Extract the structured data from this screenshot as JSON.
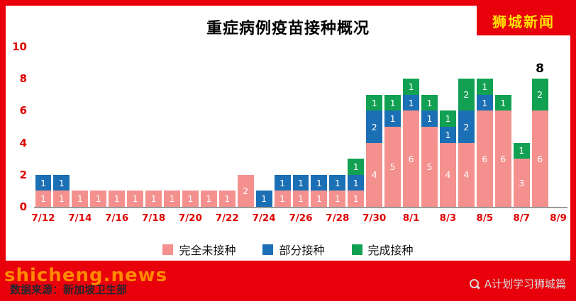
{
  "brand": "狮城新闻",
  "colors": {
    "page_red": "#e8000b",
    "brand_yellow": "#ffe100",
    "axis_label_red": "#e00000",
    "watermark_orange": "#ff8a00",
    "credit_gray": "#d8d8d8"
  },
  "chart_data": {
    "type": "bar",
    "stacked": true,
    "title": "重症病例疫苗接种概况",
    "xlabel": "",
    "ylabel": "",
    "ylim": [
      0,
      10
    ],
    "yticks": [
      0,
      2,
      4,
      6,
      8,
      10
    ],
    "grid": false,
    "legend_position": "bottom",
    "categories": [
      "7/12",
      "7/13",
      "7/14",
      "7/15",
      "7/16",
      "7/17",
      "7/18",
      "7/19",
      "7/20",
      "7/21",
      "7/22",
      "7/23",
      "7/24",
      "7/25",
      "7/26",
      "7/27",
      "7/28",
      "7/29",
      "7/30",
      "7/31",
      "8/1",
      "8/2",
      "8/3",
      "8/4",
      "8/5",
      "8/6",
      "8/7",
      "8/8"
    ],
    "x_tick_labels": [
      "7/12",
      "7/14",
      "7/16",
      "7/18",
      "7/20",
      "7/22",
      "7/24",
      "7/26",
      "7/28",
      "7/30",
      "8/1",
      "8/3",
      "8/5",
      "8/7",
      "8/9"
    ],
    "series": [
      {
        "name": "完全未接种",
        "color": "#f4918e",
        "values": [
          1,
          1,
          1,
          1,
          1,
          1,
          1,
          1,
          1,
          1,
          1,
          2,
          0,
          1,
          1,
          1,
          1,
          1,
          4,
          5,
          6,
          5,
          4,
          4,
          6,
          6,
          3,
          6
        ]
      },
      {
        "name": "部分接种",
        "color": "#1b6fb5",
        "values": [
          1,
          1,
          0,
          0,
          0,
          0,
          0,
          0,
          0,
          0,
          0,
          0,
          1,
          1,
          1,
          1,
          1,
          1,
          2,
          1,
          1,
          1,
          1,
          2,
          1,
          0,
          0,
          0
        ]
      },
      {
        "name": "完成接种",
        "color": "#12a152",
        "values": [
          0,
          0,
          0,
          0,
          0,
          0,
          0,
          0,
          0,
          0,
          0,
          0,
          0,
          0,
          0,
          0,
          0,
          1,
          1,
          1,
          1,
          1,
          1,
          2,
          1,
          1,
          1,
          2
        ]
      }
    ],
    "annotation": {
      "text": "8",
      "category": "8/8"
    }
  },
  "footer": {
    "source": "数据来源：新加坡卫生部",
    "watermark": "shicheng.news",
    "credit": "A计划学习狮城篇"
  }
}
